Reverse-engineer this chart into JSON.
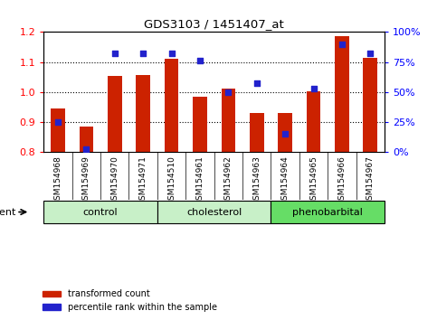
{
  "title": "GDS3103 / 1451407_at",
  "samples": [
    "GSM154968",
    "GSM154969",
    "GSM154970",
    "GSM154971",
    "GSM154510",
    "GSM154961",
    "GSM154962",
    "GSM154963",
    "GSM154964",
    "GSM154965",
    "GSM154966",
    "GSM154967"
  ],
  "red_values": [
    0.945,
    0.885,
    1.055,
    1.057,
    1.112,
    0.985,
    1.01,
    0.93,
    0.93,
    1.001,
    1.185,
    1.115
  ],
  "percentile": [
    25,
    2,
    82,
    82,
    82,
    76,
    50,
    57,
    15,
    53,
    90,
    82
  ],
  "groups": [
    {
      "label": "control",
      "start": 0,
      "end": 3,
      "color": "#c8f0c8"
    },
    {
      "label": "cholesterol",
      "start": 4,
      "end": 7,
      "color": "#c8f0c8"
    },
    {
      "label": "phenobarbital",
      "start": 8,
      "end": 11,
      "color": "#66dd66"
    }
  ],
  "ylim_left": [
    0.8,
    1.2
  ],
  "ylim_right": [
    0,
    100
  ],
  "yticks_left": [
    0.8,
    0.9,
    1.0,
    1.1,
    1.2
  ],
  "yticks_right": [
    0,
    25,
    50,
    75,
    100
  ],
  "ytick_labels_right": [
    "0%",
    "25%",
    "50%",
    "75%",
    "100%"
  ],
  "hgrid_vals": [
    0.9,
    1.0,
    1.1
  ],
  "bar_color": "#cc2200",
  "dot_color": "#2222cc",
  "baseline": 0.8,
  "bar_width": 0.5,
  "agent_label": "agent",
  "legend_tc": "transformed count",
  "legend_pr": "percentile rank within the sample",
  "tick_bg_color": "#d0d0d0",
  "group_border_color": "#000000"
}
